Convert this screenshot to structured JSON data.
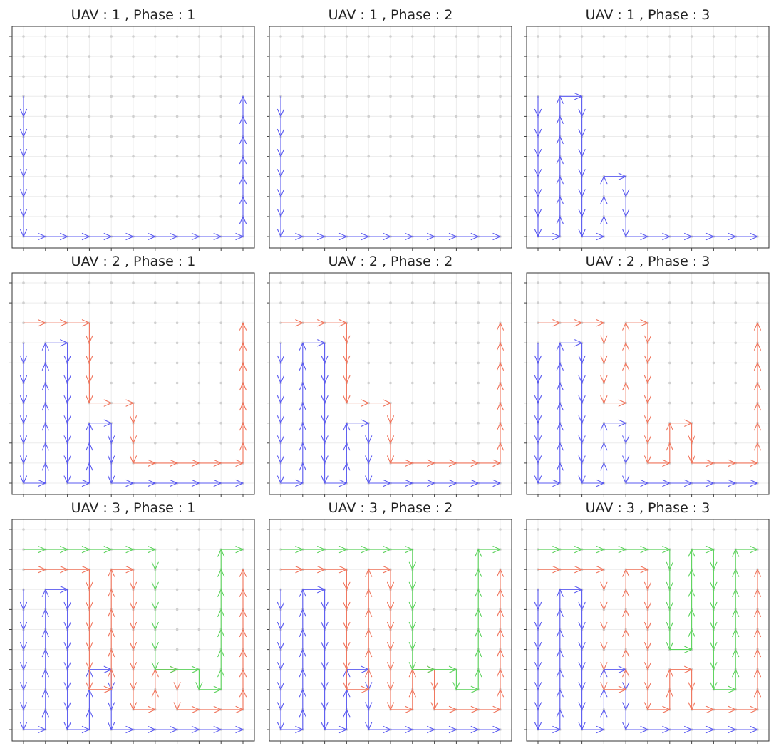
{
  "chart_data": {
    "type": "grid-path",
    "grid": {
      "cols": 11,
      "rows": 11,
      "x_range": [
        0,
        10
      ],
      "y_range": [
        0,
        10
      ]
    },
    "colors": {
      "uav1": "#5a5af0",
      "uav2": "#f0735a",
      "uav3": "#5ad25a"
    },
    "panels": [
      {
        "title": "UAV : 1 , Phase : 1",
        "paths": [
          {
            "uav": "uav1",
            "points": [
              [
                0,
                7
              ],
              [
                0,
                0
              ],
              [
                10,
                0
              ],
              [
                10,
                7
              ]
            ]
          }
        ]
      },
      {
        "title": "UAV : 1 , Phase : 2",
        "paths": [
          {
            "uav": "uav1",
            "points": [
              [
                0,
                7
              ],
              [
                0,
                0
              ],
              [
                10,
                0
              ]
            ]
          }
        ]
      },
      {
        "title": "UAV : 1 , Phase : 3",
        "paths": [
          {
            "uav": "uav1",
            "points": [
              [
                0,
                7
              ],
              [
                0,
                0
              ],
              [
                1,
                0
              ],
              [
                1,
                7
              ],
              [
                2,
                7
              ],
              [
                2,
                0
              ],
              [
                3,
                0
              ],
              [
                3,
                3
              ],
              [
                4,
                3
              ],
              [
                4,
                0
              ],
              [
                10,
                0
              ]
            ]
          }
        ]
      },
      {
        "title": "UAV : 2 , Phase : 1",
        "paths": [
          {
            "uav": "uav1",
            "points": [
              [
                0,
                7
              ],
              [
                0,
                0
              ],
              [
                1,
                0
              ],
              [
                1,
                7
              ],
              [
                2,
                7
              ],
              [
                2,
                0
              ],
              [
                3,
                0
              ],
              [
                3,
                3
              ],
              [
                4,
                3
              ],
              [
                4,
                0
              ],
              [
                10,
                0
              ]
            ]
          },
          {
            "uav": "uav2",
            "points": [
              [
                0,
                8
              ],
              [
                3,
                8
              ],
              [
                3,
                4
              ],
              [
                5,
                4
              ],
              [
                5,
                1
              ],
              [
                10,
                1
              ],
              [
                10,
                8
              ]
            ]
          }
        ]
      },
      {
        "title": "UAV : 2 , Phase : 2",
        "paths": [
          {
            "uav": "uav1",
            "points": [
              [
                0,
                7
              ],
              [
                0,
                0
              ],
              [
                1,
                0
              ],
              [
                1,
                7
              ],
              [
                2,
                7
              ],
              [
                2,
                0
              ],
              [
                3,
                0
              ],
              [
                3,
                3
              ],
              [
                4,
                3
              ],
              [
                4,
                0
              ],
              [
                10,
                0
              ]
            ]
          },
          {
            "uav": "uav2",
            "points": [
              [
                0,
                8
              ],
              [
                3,
                8
              ],
              [
                3,
                4
              ],
              [
                5,
                4
              ],
              [
                5,
                1
              ],
              [
                10,
                1
              ],
              [
                10,
                8
              ]
            ]
          }
        ]
      },
      {
        "title": "UAV : 2 , Phase : 3",
        "paths": [
          {
            "uav": "uav1",
            "points": [
              [
                0,
                7
              ],
              [
                0,
                0
              ],
              [
                1,
                0
              ],
              [
                1,
                7
              ],
              [
                2,
                7
              ],
              [
                2,
                0
              ],
              [
                3,
                0
              ],
              [
                3,
                3
              ],
              [
                4,
                3
              ],
              [
                4,
                0
              ],
              [
                10,
                0
              ]
            ]
          },
          {
            "uav": "uav2",
            "points": [
              [
                0,
                8
              ],
              [
                3,
                8
              ],
              [
                3,
                4
              ],
              [
                4,
                4
              ],
              [
                4,
                8
              ],
              [
                5,
                8
              ],
              [
                5,
                1
              ],
              [
                6,
                1
              ],
              [
                6,
                3
              ],
              [
                7,
                3
              ],
              [
                7,
                1
              ],
              [
                10,
                1
              ],
              [
                10,
                8
              ]
            ]
          }
        ]
      },
      {
        "title": "UAV : 3 , Phase : 1",
        "paths": [
          {
            "uav": "uav1",
            "points": [
              [
                0,
                7
              ],
              [
                0,
                0
              ],
              [
                1,
                0
              ],
              [
                1,
                7
              ],
              [
                2,
                7
              ],
              [
                2,
                0
              ],
              [
                3,
                0
              ],
              [
                3,
                3
              ],
              [
                4,
                3
              ],
              [
                4,
                0
              ],
              [
                10,
                0
              ]
            ]
          },
          {
            "uav": "uav2",
            "points": [
              [
                0,
                8
              ],
              [
                3,
                8
              ],
              [
                3,
                2
              ],
              [
                4,
                2
              ],
              [
                4,
                8
              ],
              [
                5,
                8
              ],
              [
                5,
                1
              ],
              [
                6,
                1
              ],
              [
                6,
                3
              ],
              [
                7,
                3
              ],
              [
                7,
                1
              ],
              [
                10,
                1
              ],
              [
                10,
                8
              ]
            ]
          },
          {
            "uav": "uav3",
            "points": [
              [
                0,
                9
              ],
              [
                6,
                9
              ],
              [
                6,
                3
              ],
              [
                8,
                3
              ],
              [
                8,
                2
              ],
              [
                9,
                2
              ],
              [
                9,
                9
              ],
              [
                10,
                9
              ]
            ]
          }
        ]
      },
      {
        "title": "UAV : 3 , Phase : 2",
        "paths": [
          {
            "uav": "uav1",
            "points": [
              [
                0,
                7
              ],
              [
                0,
                0
              ],
              [
                1,
                0
              ],
              [
                1,
                7
              ],
              [
                2,
                7
              ],
              [
                2,
                0
              ],
              [
                3,
                0
              ],
              [
                3,
                3
              ],
              [
                4,
                3
              ],
              [
                4,
                0
              ],
              [
                10,
                0
              ]
            ]
          },
          {
            "uav": "uav2",
            "points": [
              [
                0,
                8
              ],
              [
                3,
                8
              ],
              [
                3,
                2
              ],
              [
                4,
                2
              ],
              [
                4,
                8
              ],
              [
                5,
                8
              ],
              [
                5,
                1
              ],
              [
                6,
                1
              ],
              [
                6,
                3
              ],
              [
                7,
                3
              ],
              [
                7,
                1
              ],
              [
                10,
                1
              ],
              [
                10,
                8
              ]
            ]
          },
          {
            "uav": "uav3",
            "points": [
              [
                0,
                9
              ],
              [
                6,
                9
              ],
              [
                6,
                3
              ],
              [
                8,
                3
              ],
              [
                8,
                2
              ],
              [
                9,
                2
              ],
              [
                9,
                9
              ],
              [
                10,
                9
              ]
            ]
          }
        ]
      },
      {
        "title": "UAV : 3 , Phase : 3",
        "paths": [
          {
            "uav": "uav1",
            "points": [
              [
                0,
                7
              ],
              [
                0,
                0
              ],
              [
                1,
                0
              ],
              [
                1,
                7
              ],
              [
                2,
                7
              ],
              [
                2,
                0
              ],
              [
                3,
                0
              ],
              [
                3,
                3
              ],
              [
                4,
                3
              ],
              [
                4,
                0
              ],
              [
                10,
                0
              ]
            ]
          },
          {
            "uav": "uav2",
            "points": [
              [
                0,
                8
              ],
              [
                3,
                8
              ],
              [
                3,
                2
              ],
              [
                4,
                2
              ],
              [
                4,
                8
              ],
              [
                5,
                8
              ],
              [
                5,
                1
              ],
              [
                6,
                1
              ],
              [
                6,
                3
              ],
              [
                7,
                3
              ],
              [
                7,
                1
              ],
              [
                10,
                1
              ],
              [
                10,
                8
              ]
            ]
          },
          {
            "uav": "uav3",
            "points": [
              [
                0,
                9
              ],
              [
                6,
                9
              ],
              [
                6,
                4
              ],
              [
                7,
                4
              ],
              [
                7,
                9
              ],
              [
                8,
                9
              ],
              [
                8,
                2
              ],
              [
                9,
                2
              ],
              [
                9,
                9
              ],
              [
                10,
                9
              ]
            ]
          }
        ]
      }
    ]
  }
}
